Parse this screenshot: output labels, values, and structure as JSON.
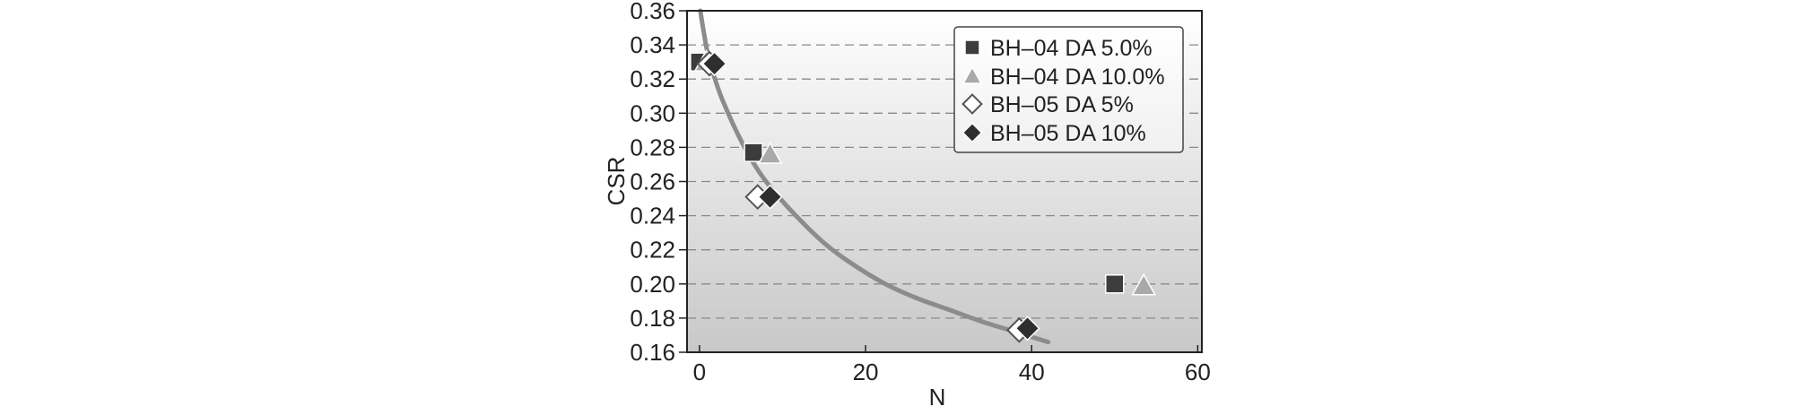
{
  "chart_data": {
    "type": "scatter",
    "xlabel": "N",
    "ylabel": "CSR",
    "xlim": [
      -1.5,
      60.5
    ],
    "ylim": [
      0.16,
      0.36
    ],
    "xticks": [
      0,
      20,
      40,
      60
    ],
    "xtick_labels": [
      "0",
      "20",
      "40",
      "60"
    ],
    "yticks": [
      0.16,
      0.18,
      0.2,
      0.22,
      0.24,
      0.26,
      0.28,
      0.3,
      0.32,
      0.34,
      0.36
    ],
    "ytick_labels": [
      "0.16",
      "0.18",
      "0.20",
      "0.22",
      "0.24",
      "0.26",
      "0.28",
      "0.30",
      "0.32",
      "0.34",
      "0.36"
    ],
    "grid": "horizontal dashed",
    "legend_position": "top-right",
    "series": [
      {
        "name": "BH–04 DA 5.0%",
        "marker": "square-dark",
        "points": [
          [
            0,
            0.33
          ],
          [
            6.5,
            0.277
          ],
          [
            50,
            0.2
          ]
        ]
      },
      {
        "name": "BH–04 DA 10.0%",
        "marker": "triangle-gray",
        "points": [
          [
            0.8,
            0.33
          ],
          [
            8.5,
            0.276
          ],
          [
            53.5,
            0.199
          ]
        ]
      },
      {
        "name": "BH–05 DA 5%",
        "marker": "diamond-open",
        "points": [
          [
            1.2,
            0.329
          ],
          [
            7,
            0.251
          ],
          [
            38.5,
            0.173
          ]
        ]
      },
      {
        "name": "BH–05 DA 10%",
        "marker": "diamond-dark",
        "points": [
          [
            1.8,
            0.329
          ],
          [
            8.5,
            0.251
          ],
          [
            39.5,
            0.174
          ]
        ]
      }
    ],
    "trend_curve": {
      "points": [
        [
          0.1,
          0.36
        ],
        [
          0.5,
          0.348
        ],
        [
          1,
          0.335
        ],
        [
          2,
          0.318
        ],
        [
          3,
          0.305
        ],
        [
          5,
          0.284
        ],
        [
          7,
          0.267
        ],
        [
          9,
          0.254
        ],
        [
          12,
          0.238
        ],
        [
          15,
          0.224
        ],
        [
          18,
          0.213
        ],
        [
          22,
          0.201
        ],
        [
          26,
          0.192
        ],
        [
          30,
          0.185
        ],
        [
          34,
          0.178
        ],
        [
          38,
          0.172
        ],
        [
          42,
          0.166
        ]
      ]
    },
    "colors": {
      "plot_bg_top": "#ffffff",
      "plot_bg_bottom": "#c8c8c8",
      "curve": "#8c8c8c",
      "square_fill": "#3c3c3c",
      "triangle_fill": "#a9a9a9",
      "diamond_open_fill": "#ffffff",
      "diamond_dark_fill": "#2e2e2e"
    }
  }
}
